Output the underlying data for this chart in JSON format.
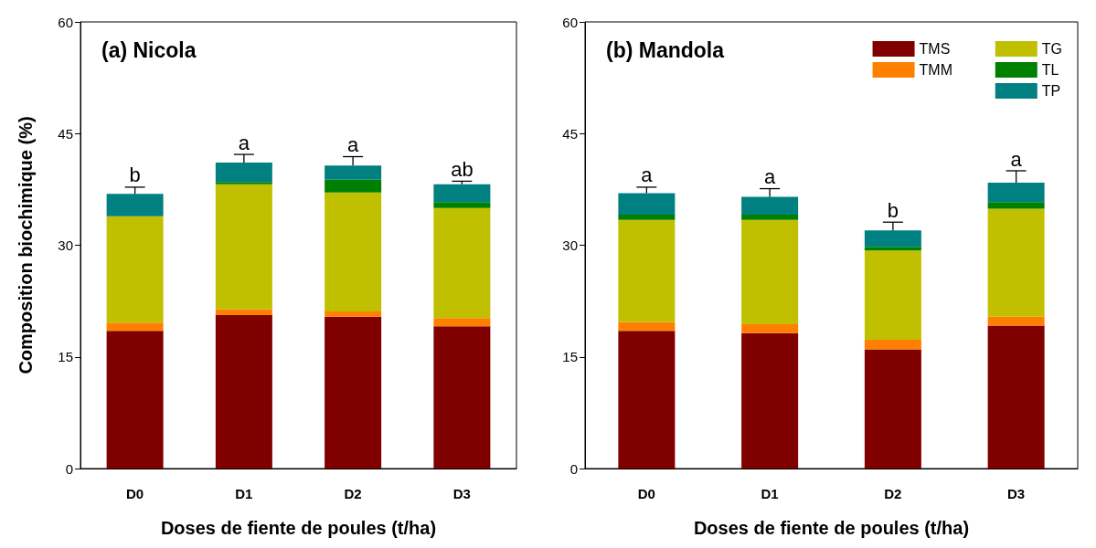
{
  "chart_data": [
    {
      "type": "bar",
      "stacked": true,
      "title": "(a) Nicola",
      "xlabel": "Doses de fiente de poules (t/ha)",
      "ylabel": "Composition biochimique (%)",
      "categories": [
        "D0",
        "D1",
        "D2",
        "D3"
      ],
      "ylim": [
        0,
        60
      ],
      "yticks": [
        0,
        15,
        30,
        45,
        60
      ],
      "grid": false,
      "legend": false,
      "series": [
        {
          "color": "#800000",
          "values": [
            18.5,
            20.6,
            20.4,
            19.1
          ]
        },
        {
          "color": "#ff8000",
          "values": [
            1.1,
            0.8,
            0.7,
            1.1
          ]
        },
        {
          "color": "#c0c000",
          "values": [
            14.3,
            16.8,
            16.0,
            14.8
          ]
        },
        {
          "color": "#008000",
          "values": [
            0,
            0.3,
            1.7,
            0.8
          ]
        },
        {
          "color": "#008080",
          "values": [
            3.0,
            2.6,
            1.9,
            2.4
          ],
          "errors": [
            0.9,
            1.1,
            1.2,
            0.4
          ]
        }
      ],
      "annotations": [
        {
          "text": "b",
          "x": "D0",
          "y": 37.8
        },
        {
          "text": "a",
          "x": "D1",
          "y": 42.2
        },
        {
          "text": "a",
          "x": "D2",
          "y": 41.9
        },
        {
          "text": "ab",
          "x": "D3",
          "y": 38.6
        }
      ]
    },
    {
      "type": "bar",
      "stacked": true,
      "title": "(b) Mandola",
      "xlabel": "Doses de fiente de poules (t/ha)",
      "categories": [
        "D0",
        "D1",
        "D2",
        "D3"
      ],
      "ylim": [
        0,
        60
      ],
      "yticks": [
        0,
        15,
        30,
        45,
        60
      ],
      "grid": false,
      "legend": "top right",
      "series": [
        {
          "name": "TMS",
          "color": "#800000",
          "values": [
            18.5,
            18.2,
            16.0,
            19.2
          ]
        },
        {
          "name": "TMM",
          "color": "#ff8000",
          "values": [
            1.2,
            1.2,
            1.3,
            1.2
          ]
        },
        {
          "name": "TG",
          "color": "#c0c000",
          "values": [
            13.7,
            14.0,
            12.0,
            14.5
          ]
        },
        {
          "name": "TL",
          "color": "#008000",
          "values": [
            0.7,
            0.7,
            0.5,
            0.9
          ]
        },
        {
          "name": "TP",
          "color": "#008080",
          "values": [
            2.9,
            2.4,
            2.2,
            2.6
          ],
          "errors": [
            0.8,
            1.1,
            1.1,
            1.6
          ]
        }
      ],
      "annotations": [
        {
          "text": "a",
          "x": "D0",
          "y": 37.8
        },
        {
          "text": "a",
          "x": "D1",
          "y": 37.6
        },
        {
          "text": "b",
          "x": "D2",
          "y": 33.1
        },
        {
          "text": "a",
          "x": "D3",
          "y": 40.0
        }
      ]
    }
  ]
}
